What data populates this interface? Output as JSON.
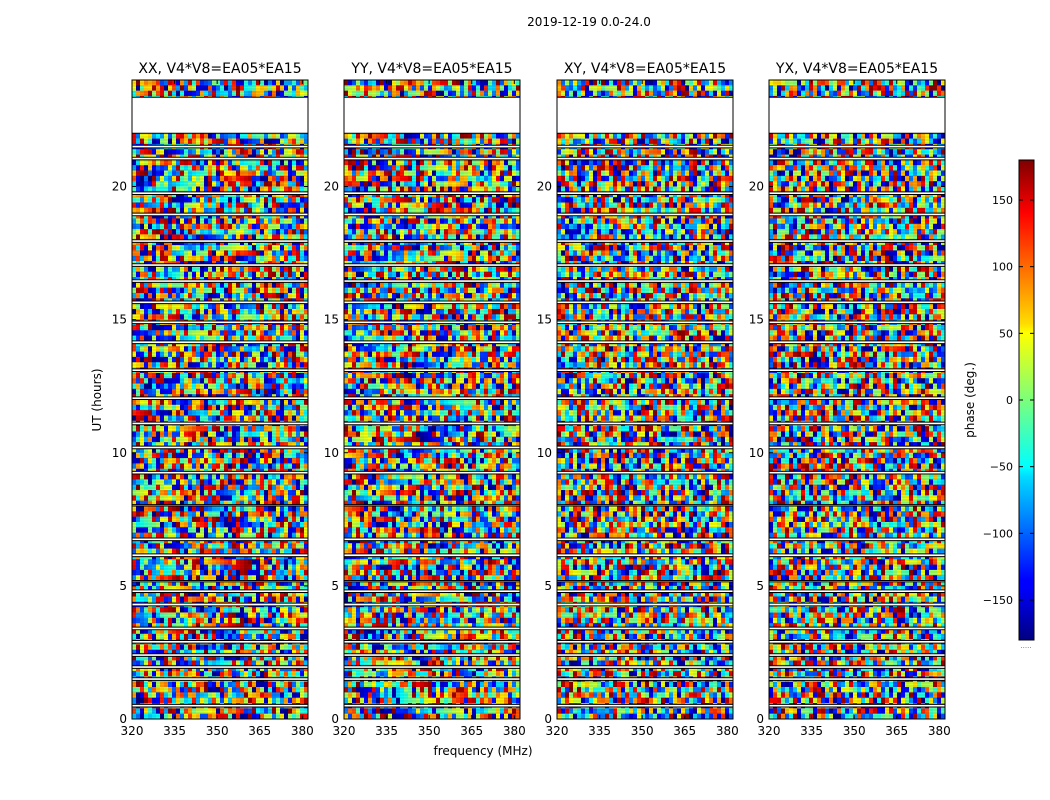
{
  "figure_title": "2019-12-19 0.0-24.0",
  "xlabel": "frequency (MHz)",
  "ylabel": "UT (hours)",
  "colorbar": {
    "label": "phase (deg.)",
    "ticks": [
      -150,
      -100,
      -50,
      0,
      50,
      100,
      150
    ],
    "range": [
      -180,
      180
    ],
    "colormap": "jet",
    "footer_text": "....."
  },
  "chart_data": [
    {
      "type": "heatmap",
      "title": "XX, V4*V8=EA05*EA15",
      "polarization": "XX",
      "baseline": "V4*V8=EA05*EA15",
      "xlabel": "",
      "ylabel": "UT (hours)",
      "xlim": [
        320,
        382
      ],
      "ylim": [
        0,
        24
      ],
      "xticks": [
        320,
        335,
        350,
        365,
        380
      ],
      "yticks": [
        0,
        5,
        10,
        15,
        20
      ]
    },
    {
      "type": "heatmap",
      "title": "YY, V4*V8=EA05*EA15",
      "polarization": "YY",
      "baseline": "V4*V8=EA05*EA15",
      "xlabel": "frequency (MHz)",
      "ylabel": "",
      "xlim": [
        320,
        382
      ],
      "ylim": [
        0,
        24
      ],
      "xticks": [
        320,
        335,
        350,
        365,
        380
      ],
      "yticks": [
        0,
        5,
        10,
        15,
        20
      ]
    },
    {
      "type": "heatmap",
      "title": "XY, V4*V8=EA05*EA15",
      "polarization": "XY",
      "baseline": "V4*V8=EA05*EA15",
      "xlabel": "",
      "ylabel": "",
      "xlim": [
        320,
        382
      ],
      "ylim": [
        0,
        24
      ],
      "xticks": [
        320,
        335,
        350,
        365,
        380
      ],
      "yticks": [
        0,
        5,
        10,
        15,
        20
      ]
    },
    {
      "type": "heatmap",
      "title": "YX, V4*V8=EA05*EA15",
      "polarization": "YX",
      "baseline": "V4*V8=EA05*EA15",
      "xlabel": "",
      "ylabel": "",
      "xlim": [
        320,
        382
      ],
      "ylim": [
        0,
        24
      ],
      "xticks": [
        320,
        335,
        350,
        365,
        380
      ],
      "yticks": [
        0,
        5,
        10,
        15,
        20
      ]
    }
  ],
  "data_gaps_hours": [
    [
      0.45,
      0.55
    ],
    [
      1.45,
      1.55
    ],
    [
      1.9,
      2.0
    ],
    [
      2.35,
      2.45
    ],
    [
      2.85,
      2.95
    ],
    [
      3.35,
      3.45
    ],
    [
      4.25,
      4.35
    ],
    [
      4.75,
      4.85
    ],
    [
      5.15,
      5.2
    ],
    [
      6.1,
      6.2
    ],
    [
      6.7,
      6.8
    ],
    [
      8.0,
      8.05
    ],
    [
      9.2,
      9.3
    ],
    [
      10.15,
      10.25
    ],
    [
      11.05,
      11.15
    ],
    [
      12.0,
      12.1
    ],
    [
      13.05,
      13.15
    ],
    [
      14.1,
      14.2
    ],
    [
      14.85,
      14.95
    ],
    [
      15.6,
      15.7
    ],
    [
      16.4,
      16.5
    ],
    [
      17.0,
      17.1
    ],
    [
      17.9,
      18.0
    ],
    [
      18.9,
      19.0
    ],
    [
      19.7,
      19.8
    ],
    [
      21.0,
      21.1
    ],
    [
      21.45,
      21.55
    ],
    [
      22.0,
      23.35
    ]
  ]
}
